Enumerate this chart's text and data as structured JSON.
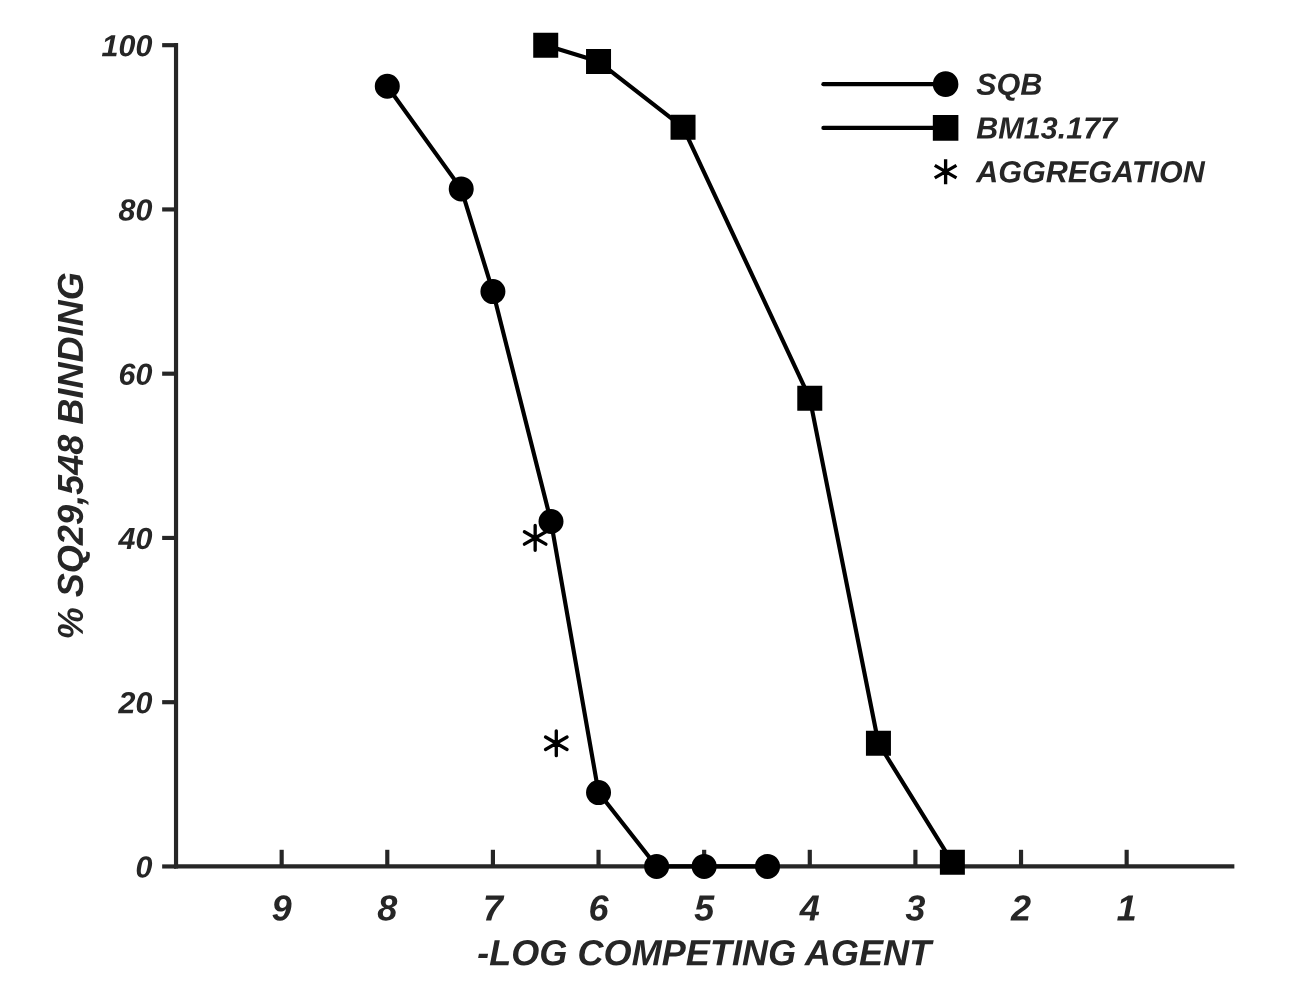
{
  "chart_data": {
    "type": "line",
    "xlabel": "-LOG COMPETING AGENT",
    "ylabel": "% SQ29,548 BINDING",
    "xlim": [
      10,
      0
    ],
    "xticks": [
      9,
      8,
      7,
      6,
      5,
      4,
      3,
      2,
      1
    ],
    "ylim": [
      0,
      100
    ],
    "yticks": [
      0,
      20,
      40,
      60,
      80,
      100
    ],
    "grid": false,
    "legend": "top right",
    "series": [
      {
        "name": "SQB",
        "color": "#000000",
        "marker": "circle",
        "line_style": "solid",
        "x": [
          8.0,
          7.3,
          7.0,
          6.45,
          6.0,
          5.45,
          5.0,
          4.4
        ],
        "values": [
          95,
          82.5,
          70,
          42,
          9,
          0,
          0,
          0
        ]
      },
      {
        "name": "BM13.177",
        "color": "#000000",
        "marker": "square",
        "line_style": "solid",
        "x": [
          6.5,
          6.0,
          5.2,
          4.0,
          3.35,
          2.65
        ],
        "values": [
          100,
          98,
          90,
          57,
          15,
          0.5
        ]
      },
      {
        "name": "AGGREGATION",
        "type": "scatter",
        "color": "#000000",
        "marker": "cross",
        "x": [
          6.6,
          6.4
        ],
        "values": [
          40,
          15
        ]
      }
    ]
  }
}
